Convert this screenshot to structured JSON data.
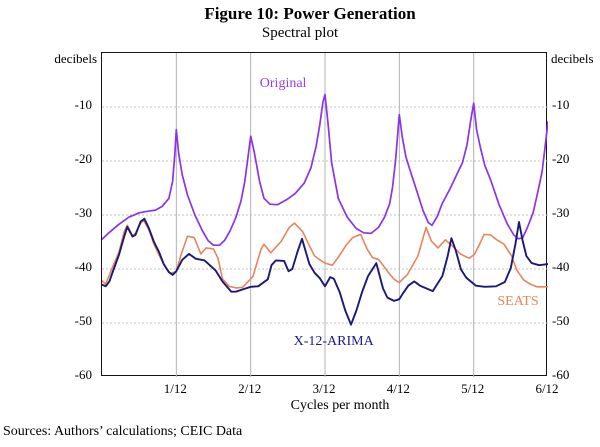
{
  "figure": {
    "title": "Figure 10: Power Generation",
    "subtitle": "Spectral plot",
    "source_note": "Sources:  Authors’ calculations; CEIC Data"
  },
  "axes": {
    "y_unit_left": "decibels",
    "y_unit_right": "decibels",
    "x_label": "Cycles per month",
    "x_ticks": [
      "1/12",
      "2/12",
      "3/12",
      "4/12",
      "5/12",
      "6/12"
    ],
    "y_ticks": [
      "-10",
      "-20",
      "-30",
      "-40",
      "-50",
      "-60"
    ],
    "grid_color_vertical": "#b2b2b2",
    "grid_color_horizontal": "#c0c0c0",
    "border_color": "#161616"
  },
  "chart_data": {
    "type": "line",
    "title": "Figure 10: Power Generation — Spectral plot",
    "xlabel": "Cycles per month",
    "ylabel": "decibels",
    "x_unit": "twelfths of a cycle per month",
    "xlim": [
      0,
      6
    ],
    "ylim": [
      -60,
      0
    ],
    "x_gridlines": [
      1,
      2,
      3,
      4,
      5
    ],
    "y_gridlines": [
      -10,
      -20,
      -30,
      -40,
      -50
    ],
    "legend_position": "inline-annotations",
    "annotations": [
      {
        "label": "Original",
        "x": 2.45,
        "y": -5.9,
        "color": "#9440ea"
      },
      {
        "label": "X-12-ARIMA",
        "x": 3.13,
        "y": -53.7,
        "color": "#1a1a8f"
      },
      {
        "label": "SEATS",
        "x": 5.61,
        "y": -46.3,
        "color": "#e8845c"
      }
    ],
    "series": [
      {
        "name": "Original",
        "color": "#8b33e8",
        "width": 1.7,
        "points": [
          [
            0,
            -34.5
          ],
          [
            0.1,
            -33.2
          ],
          [
            0.23,
            -31.7
          ],
          [
            0.36,
            -30.4
          ],
          [
            0.5,
            -29.6
          ],
          [
            0.62,
            -29.3
          ],
          [
            0.72,
            -29.1
          ],
          [
            0.81,
            -28.4
          ],
          [
            0.9,
            -26.9
          ],
          [
            0.95,
            -23.8
          ],
          [
            0.98,
            -18.8
          ],
          [
            1,
            -14.2
          ],
          [
            1.03,
            -18.5
          ],
          [
            1.08,
            -22.6
          ],
          [
            1.15,
            -26.3
          ],
          [
            1.25,
            -30
          ],
          [
            1.35,
            -32.9
          ],
          [
            1.43,
            -34.8
          ],
          [
            1.5,
            -35.6
          ],
          [
            1.58,
            -35.6
          ],
          [
            1.65,
            -34.7
          ],
          [
            1.72,
            -33
          ],
          [
            1.8,
            -30.5
          ],
          [
            1.87,
            -27.4
          ],
          [
            1.92,
            -23.9
          ],
          [
            1.96,
            -19.7
          ],
          [
            2,
            -15.4
          ],
          [
            2.05,
            -18.5
          ],
          [
            2.12,
            -23.8
          ],
          [
            2.18,
            -26.9
          ],
          [
            2.26,
            -28
          ],
          [
            2.36,
            -28.1
          ],
          [
            2.48,
            -27.2
          ],
          [
            2.6,
            -26
          ],
          [
            2.72,
            -24.1
          ],
          [
            2.81,
            -21.3
          ],
          [
            2.88,
            -17.3
          ],
          [
            2.93,
            -13.3
          ],
          [
            2.97,
            -9.2
          ],
          [
            3,
            -7.7
          ],
          [
            3.04,
            -13
          ],
          [
            3.09,
            -20.4
          ],
          [
            3.18,
            -27
          ],
          [
            3.3,
            -30.4
          ],
          [
            3.42,
            -32.5
          ],
          [
            3.52,
            -33.3
          ],
          [
            3.62,
            -33.4
          ],
          [
            3.72,
            -32.3
          ],
          [
            3.8,
            -30.4
          ],
          [
            3.87,
            -27.9
          ],
          [
            3.91,
            -24.8
          ],
          [
            3.95,
            -19.8
          ],
          [
            3.98,
            -14.8
          ],
          [
            4,
            -11.4
          ],
          [
            4.04,
            -15.6
          ],
          [
            4.09,
            -19.3
          ],
          [
            4.14,
            -21.5
          ],
          [
            4.24,
            -25.8
          ],
          [
            4.32,
            -29.2
          ],
          [
            4.39,
            -31.4
          ],
          [
            4.44,
            -31.9
          ],
          [
            4.51,
            -30.3
          ],
          [
            4.58,
            -27.8
          ],
          [
            4.68,
            -25.2
          ],
          [
            4.78,
            -22.3
          ],
          [
            4.85,
            -20.3
          ],
          [
            4.91,
            -17
          ],
          [
            4.96,
            -12.5
          ],
          [
            5,
            -9.3
          ],
          [
            5.04,
            -14.2
          ],
          [
            5.09,
            -17.5
          ],
          [
            5.15,
            -20.8
          ],
          [
            5.23,
            -23.6
          ],
          [
            5.34,
            -28
          ],
          [
            5.45,
            -31.6
          ],
          [
            5.54,
            -33.7
          ],
          [
            5.6,
            -34.4
          ],
          [
            5.66,
            -34.2
          ],
          [
            5.72,
            -32.4
          ],
          [
            5.8,
            -29.6
          ],
          [
            5.86,
            -25.9
          ],
          [
            5.92,
            -22
          ],
          [
            5.96,
            -17.5
          ],
          [
            6,
            -12.7
          ]
        ]
      },
      {
        "name": "SEATS",
        "color": "#e8845c",
        "width": 1.6,
        "points": [
          [
            0,
            -42.2
          ],
          [
            0.05,
            -42.8
          ],
          [
            0.14,
            -39.7
          ],
          [
            0.23,
            -36.8
          ],
          [
            0.3,
            -33
          ],
          [
            0.34,
            -31.9
          ],
          [
            0.41,
            -33.8
          ],
          [
            0.45,
            -33.4
          ],
          [
            0.52,
            -31.5
          ],
          [
            0.56,
            -31
          ],
          [
            0.63,
            -32.7
          ],
          [
            0.7,
            -35.4
          ],
          [
            0.77,
            -37.5
          ],
          [
            0.86,
            -39.8
          ],
          [
            0.92,
            -40.8
          ],
          [
            1,
            -40.5
          ],
          [
            1.06,
            -37.5
          ],
          [
            1.15,
            -33.9
          ],
          [
            1.24,
            -34.2
          ],
          [
            1.33,
            -37.2
          ],
          [
            1.4,
            -36.1
          ],
          [
            1.5,
            -36.3
          ],
          [
            1.56,
            -38
          ],
          [
            1.62,
            -41.8
          ],
          [
            1.71,
            -43.2
          ],
          [
            1.8,
            -43.5
          ],
          [
            1.89,
            -43.4
          ],
          [
            2.03,
            -41.4
          ],
          [
            2.14,
            -36.3
          ],
          [
            2.18,
            -35.4
          ],
          [
            2.27,
            -37
          ],
          [
            2.41,
            -34.9
          ],
          [
            2.52,
            -32.3
          ],
          [
            2.59,
            -31.5
          ],
          [
            2.7,
            -33.1
          ],
          [
            2.79,
            -35.7
          ],
          [
            2.86,
            -37.6
          ],
          [
            2.95,
            -38.5
          ],
          [
            3,
            -38.9
          ],
          [
            3.1,
            -39.3
          ],
          [
            3.19,
            -37.6
          ],
          [
            3.28,
            -35.7
          ],
          [
            3.37,
            -34.2
          ],
          [
            3.48,
            -33.6
          ],
          [
            3.57,
            -36.4
          ],
          [
            3.64,
            -37.9
          ],
          [
            3.72,
            -38.2
          ],
          [
            3.84,
            -40.4
          ],
          [
            3.93,
            -41.9
          ],
          [
            4,
            -42.5
          ],
          [
            4.11,
            -41
          ],
          [
            4.25,
            -37.6
          ],
          [
            4.36,
            -32.3
          ],
          [
            4.43,
            -34.8
          ],
          [
            4.52,
            -36.1
          ],
          [
            4.62,
            -34.6
          ],
          [
            4.74,
            -36.1
          ],
          [
            4.83,
            -37.3
          ],
          [
            4.94,
            -38
          ],
          [
            5.01,
            -37.3
          ],
          [
            5.08,
            -35.4
          ],
          [
            5.14,
            -33.6
          ],
          [
            5.23,
            -33.7
          ],
          [
            5.3,
            -34.5
          ],
          [
            5.41,
            -35.4
          ],
          [
            5.51,
            -37.6
          ],
          [
            5.58,
            -40.2
          ],
          [
            5.67,
            -42
          ],
          [
            5.76,
            -42.8
          ],
          [
            5.85,
            -43.3
          ],
          [
            6,
            -43.3
          ]
        ]
      },
      {
        "name": "X-12-ARIMA",
        "color": "#1a1a75",
        "width": 1.9,
        "points": [
          [
            0,
            -42.9
          ],
          [
            0.05,
            -43.2
          ],
          [
            0.1,
            -42.3
          ],
          [
            0.14,
            -40.7
          ],
          [
            0.23,
            -37.3
          ],
          [
            0.3,
            -33.9
          ],
          [
            0.34,
            -32.2
          ],
          [
            0.41,
            -34
          ],
          [
            0.45,
            -33.7
          ],
          [
            0.52,
            -31.2
          ],
          [
            0.57,
            -30.7
          ],
          [
            0.63,
            -32.4
          ],
          [
            0.7,
            -35
          ],
          [
            0.77,
            -36.9
          ],
          [
            0.83,
            -39.1
          ],
          [
            0.9,
            -40.6
          ],
          [
            0.95,
            -41.1
          ],
          [
            1,
            -40.4
          ],
          [
            1.08,
            -38.3
          ],
          [
            1.17,
            -37.2
          ],
          [
            1.26,
            -38.1
          ],
          [
            1.38,
            -38.4
          ],
          [
            1.53,
            -40.3
          ],
          [
            1.62,
            -42.3
          ],
          [
            1.74,
            -44.2
          ],
          [
            1.8,
            -44.2
          ],
          [
            1.89,
            -43.8
          ],
          [
            2,
            -43.3
          ],
          [
            2.1,
            -43.2
          ],
          [
            2.23,
            -41.9
          ],
          [
            2.28,
            -39.3
          ],
          [
            2.34,
            -38.4
          ],
          [
            2.45,
            -38.5
          ],
          [
            2.51,
            -40.4
          ],
          [
            2.56,
            -40
          ],
          [
            2.63,
            -36.8
          ],
          [
            2.69,
            -34.4
          ],
          [
            2.79,
            -39.1
          ],
          [
            2.86,
            -40.7
          ],
          [
            2.93,
            -41.7
          ],
          [
            3,
            -43.2
          ],
          [
            3.07,
            -41.5
          ],
          [
            3.12,
            -41.8
          ],
          [
            3.2,
            -44.4
          ],
          [
            3.27,
            -47.6
          ],
          [
            3.35,
            -50.3
          ],
          [
            3.42,
            -47.8
          ],
          [
            3.5,
            -44.2
          ],
          [
            3.58,
            -41.3
          ],
          [
            3.64,
            -40
          ],
          [
            3.69,
            -38.9
          ],
          [
            3.78,
            -43.6
          ],
          [
            3.84,
            -45.3
          ],
          [
            3.93,
            -45.9
          ],
          [
            4,
            -45.6
          ],
          [
            4.05,
            -44.5
          ],
          [
            4.12,
            -43.1
          ],
          [
            4.2,
            -42.3
          ],
          [
            4.28,
            -43.1
          ],
          [
            4.45,
            -44.1
          ],
          [
            4.58,
            -41.3
          ],
          [
            4.65,
            -37.6
          ],
          [
            4.7,
            -34.3
          ],
          [
            4.76,
            -36.6
          ],
          [
            4.83,
            -40.1
          ],
          [
            4.9,
            -41.6
          ],
          [
            4.96,
            -42.3
          ],
          [
            5.03,
            -43.1
          ],
          [
            5.15,
            -43.3
          ],
          [
            5.3,
            -43.2
          ],
          [
            5.42,
            -42.4
          ],
          [
            5.5,
            -39.8
          ],
          [
            5.56,
            -35.5
          ],
          [
            5.61,
            -31.3
          ],
          [
            5.66,
            -34.8
          ],
          [
            5.71,
            -37.6
          ],
          [
            5.78,
            -38.9
          ],
          [
            5.88,
            -39.3
          ],
          [
            6,
            -39.1
          ]
        ]
      }
    ]
  }
}
